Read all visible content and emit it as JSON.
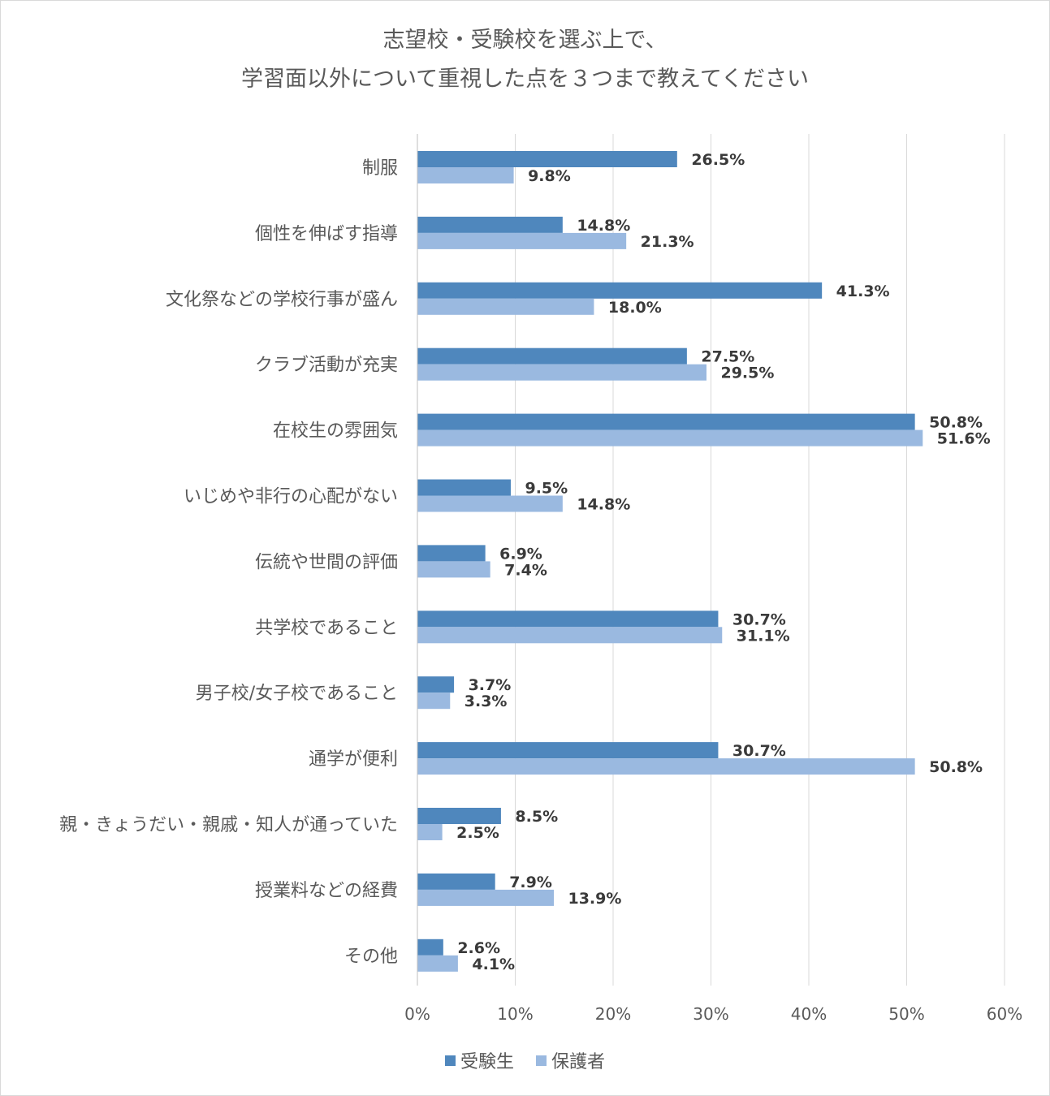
{
  "chart_data": {
    "type": "bar",
    "orientation": "horizontal",
    "title_lines": [
      "志望校・受験校を選ぶ上で、",
      "学習面以外について重視した点を３つまで教えてください"
    ],
    "categories": [
      "制服",
      "個性を伸ばす指導",
      "文化祭などの学校行事が盛ん",
      "クラブ活動が充実",
      "在校生の雰囲気",
      "いじめや非行の心配がない",
      "伝統や世間の評価",
      "共学校であること",
      "男子校/女子校であること",
      "通学が便利",
      "親・きょうだい・親戚・知人が通っていた",
      "授業料などの経費",
      "その他"
    ],
    "series": [
      {
        "name": "受験生",
        "color": "#4f87bd",
        "values": [
          26.5,
          14.8,
          41.3,
          27.5,
          50.8,
          9.5,
          6.9,
          30.7,
          3.7,
          30.7,
          8.5,
          7.9,
          2.6
        ],
        "labels": [
          "26.5%",
          "14.8%",
          "41.3%",
          "27.5%",
          "50.8%",
          "9.5%",
          "6.9%",
          "30.7%",
          "3.7%",
          "30.7%",
          "8.5%",
          "7.9%",
          "2.6%"
        ]
      },
      {
        "name": "保護者",
        "color": "#9ab9e0",
        "values": [
          9.8,
          21.3,
          18.0,
          29.5,
          51.6,
          14.8,
          7.4,
          31.1,
          3.3,
          50.8,
          2.5,
          13.9,
          4.1
        ],
        "labels": [
          "9.8%",
          "21.3%",
          "18.0%",
          "29.5%",
          "51.6%",
          "14.8%",
          "7.4%",
          "31.1%",
          "3.3%",
          "50.8%",
          "2.5%",
          "13.9%",
          "4.1%"
        ]
      }
    ],
    "xlim": [
      0,
      60
    ],
    "xticks": [
      "0%",
      "10%",
      "20%",
      "30%",
      "40%",
      "50%",
      "60%"
    ],
    "grid": true,
    "legend_position": "bottom"
  }
}
